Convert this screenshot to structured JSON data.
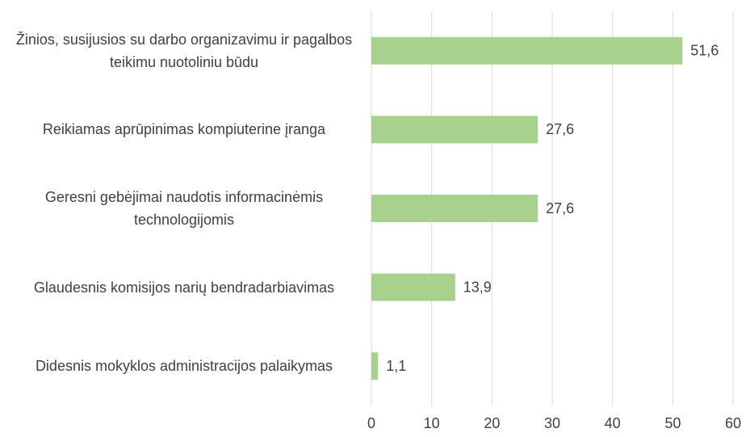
{
  "chart_data": {
    "type": "barh",
    "categories": [
      "Žinios, susijusios su darbo organizavimu ir pagalbos teikimu nuotoliniu būdu",
      "Reikiamas aprūpinimas kompiuterine įranga",
      "Geresni gebėjimai naudotis informacinėmis technologijomis",
      "Glaudesnis komisijos narių bendradarbiavimas",
      "Didesnis mokyklos administracijos palaikymas"
    ],
    "values": [
      51.6,
      27.6,
      27.6,
      13.9,
      1.1
    ],
    "value_labels": [
      "51,6",
      "27,6",
      "27,6",
      "13,9",
      "1,1"
    ],
    "color": "#a9d18e",
    "xlim": [
      0,
      60
    ],
    "xticks": [
      0,
      10,
      20,
      30,
      40,
      50,
      60
    ],
    "grid": true
  }
}
